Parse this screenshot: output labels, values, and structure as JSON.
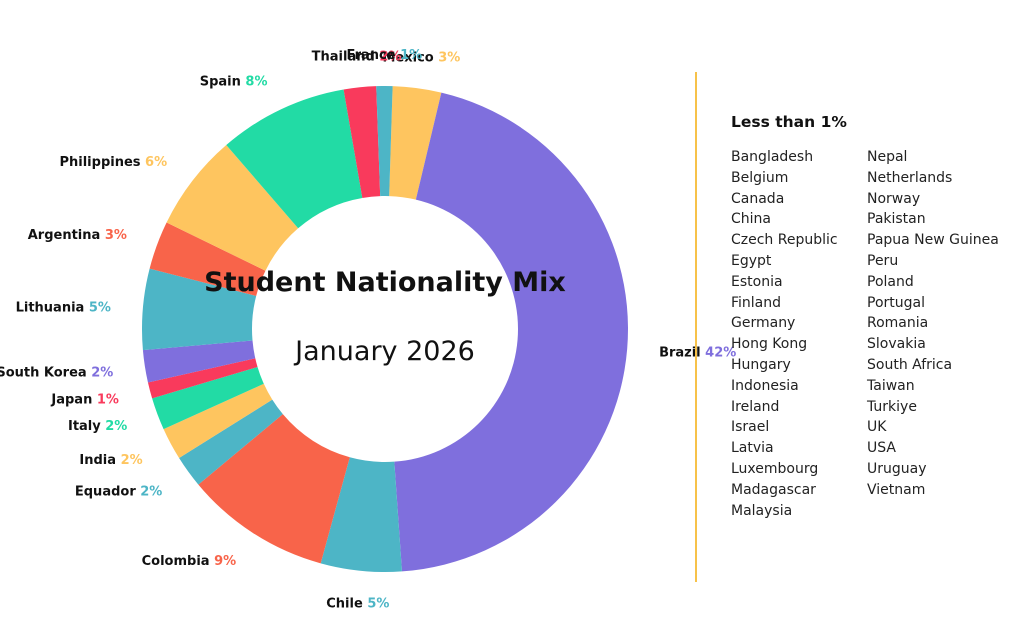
{
  "chart_data": {
    "type": "pie",
    "title": "Student Nationality Mix",
    "subtitle": "January 2026",
    "slices": [
      {
        "label": "Mexico",
        "value": 3,
        "value_label": "3%",
        "color": "#fec55f"
      },
      {
        "label": "Brazil",
        "value": 42,
        "value_label": "42%",
        "color": "#7f6fdd"
      },
      {
        "label": "Chile",
        "value": 5,
        "value_label": "5%",
        "color": "#4db5c6"
      },
      {
        "label": "Colombia",
        "value": 9,
        "value_label": "9%",
        "color": "#f8644a"
      },
      {
        "label": "Equador",
        "value": 2,
        "value_label": "2%",
        "color": "#4db5c6"
      },
      {
        "label": "India",
        "value": 2,
        "value_label": "2%",
        "color": "#fec55f"
      },
      {
        "label": "Italy",
        "value": 2,
        "value_label": "2%",
        "color": "#22dba5"
      },
      {
        "label": "Japan",
        "value": 1,
        "value_label": "1%",
        "color": "#f93a5c"
      },
      {
        "label": "South Korea",
        "value": 2,
        "value_label": "2%",
        "color": "#7f6fdd"
      },
      {
        "label": "Lithuania",
        "value": 5,
        "value_label": "5%",
        "color": "#4db5c6"
      },
      {
        "label": "Argentina",
        "value": 3,
        "value_label": "3%",
        "color": "#f8644a"
      },
      {
        "label": "Philippines",
        "value": 6,
        "value_label": "6%",
        "color": "#fec55f"
      },
      {
        "label": "Spain",
        "value": 8,
        "value_label": "8%",
        "color": "#22dba5"
      },
      {
        "label": "Thailand",
        "value": 2,
        "value_label": "2%",
        "color": "#f93a5c"
      },
      {
        "label": "France",
        "value": 1,
        "value_label": "1%",
        "color": "#4db5c6"
      }
    ]
  },
  "legend": {
    "title": "Less than 1%",
    "col1": [
      "Bangladesh",
      "Belgium",
      "Canada",
      "China",
      "Czech Republic",
      "Egypt",
      "Estonia",
      "Finland",
      "Germany",
      "Hong Kong",
      "Hungary",
      "Indonesia",
      "Ireland",
      "Israel",
      "Latvia",
      "Luxembourg",
      "Madagascar",
      "Malaysia"
    ],
    "col2": [
      "Nepal",
      "Netherlands",
      "Norway",
      "Pakistan",
      "Papua New Guinea",
      "Peru",
      "Poland",
      "Portugal",
      "Romania",
      "Slovakia",
      "South Africa",
      "Taiwan",
      "Turkiye",
      "UK",
      "USA",
      "Uruguay",
      "Vietnam"
    ]
  }
}
